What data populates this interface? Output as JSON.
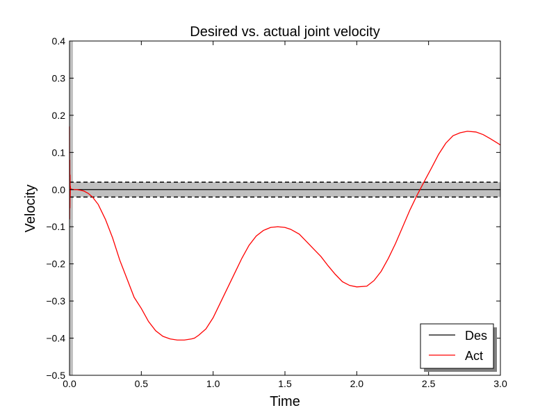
{
  "chart_data": {
    "type": "line",
    "title": "Desired vs. actual joint velocity",
    "xlabel": "Time",
    "ylabel": "Velocity",
    "xlim": [
      0.0,
      3.0
    ],
    "ylim": [
      -0.5,
      0.4
    ],
    "xticks": [
      0.0,
      0.5,
      1.0,
      1.5,
      2.0,
      2.5,
      3.0
    ],
    "xtick_labels": [
      "0.0",
      "0.5",
      "1.0",
      "1.5",
      "2.0",
      "2.5",
      "3.0"
    ],
    "yticks": [
      0.4,
      0.3,
      0.2,
      0.1,
      0.0,
      -0.1,
      -0.2,
      -0.3,
      -0.4,
      -0.5
    ],
    "ytick_labels": [
      "0.4",
      "0.3",
      "0.2",
      "0.1",
      "0.0",
      "−0.1",
      "−0.2",
      "−0.3",
      "−0.4",
      "−0.5"
    ],
    "grid": false,
    "legend_position": "bottom-right",
    "tolerance_band": {
      "lower": -0.02,
      "upper": 0.02,
      "color": "#c0c0c0",
      "edge_style": "dashed"
    },
    "series": [
      {
        "name": "Des",
        "color": "#000000",
        "x": [
          0.0,
          3.0
        ],
        "y": [
          0.0,
          0.0
        ]
      },
      {
        "name": "Act",
        "color": "#ff0000",
        "x": [
          0.0,
          0.001,
          0.002,
          0.003,
          0.004,
          0.005,
          0.006,
          0.008,
          0.01,
          0.015,
          0.03,
          0.05,
          0.08,
          0.1,
          0.13,
          0.16,
          0.2,
          0.25,
          0.3,
          0.35,
          0.4,
          0.45,
          0.5,
          0.55,
          0.6,
          0.65,
          0.7,
          0.75,
          0.8,
          0.85,
          0.87,
          0.9,
          0.95,
          1.0,
          1.05,
          1.1,
          1.15,
          1.2,
          1.25,
          1.3,
          1.35,
          1.4,
          1.45,
          1.5,
          1.54,
          1.6,
          1.65,
          1.7,
          1.75,
          1.8,
          1.85,
          1.9,
          1.95,
          2.0,
          2.07,
          2.12,
          2.17,
          2.22,
          2.27,
          2.32,
          2.37,
          2.42,
          2.47,
          2.52,
          2.57,
          2.62,
          2.67,
          2.72,
          2.77,
          2.83,
          2.88,
          2.93,
          2.98,
          3.0
        ],
        "y": [
          0.17,
          -0.08,
          0.08,
          -0.05,
          0.04,
          -0.02,
          0.01,
          0.0,
          0.002,
          0.001,
          0.0,
          0.0,
          -0.002,
          -0.004,
          -0.01,
          -0.02,
          -0.04,
          -0.08,
          -0.13,
          -0.19,
          -0.24,
          -0.29,
          -0.32,
          -0.355,
          -0.38,
          -0.395,
          -0.402,
          -0.405,
          -0.405,
          -0.402,
          -0.4,
          -0.392,
          -0.375,
          -0.345,
          -0.305,
          -0.265,
          -0.225,
          -0.185,
          -0.15,
          -0.125,
          -0.11,
          -0.102,
          -0.1,
          -0.102,
          -0.107,
          -0.12,
          -0.14,
          -0.16,
          -0.18,
          -0.205,
          -0.228,
          -0.248,
          -0.258,
          -0.262,
          -0.26,
          -0.245,
          -0.22,
          -0.185,
          -0.145,
          -0.1,
          -0.055,
          -0.015,
          0.022,
          0.058,
          0.095,
          0.125,
          0.145,
          0.153,
          0.157,
          0.155,
          0.148,
          0.137,
          0.125,
          0.12
        ]
      }
    ]
  }
}
